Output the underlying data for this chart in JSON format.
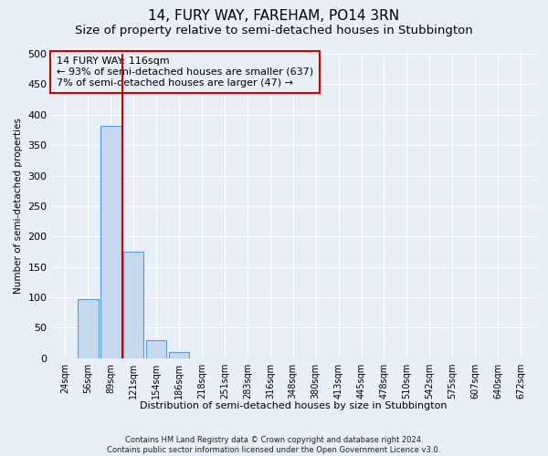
{
  "title": "14, FURY WAY, FAREHAM, PO14 3RN",
  "subtitle": "Size of property relative to semi-detached houses in Stubbington",
  "xlabel": "Distribution of semi-detached houses by size in Stubbington",
  "ylabel": "Number of semi-detached properties",
  "categories": [
    "24sqm",
    "56sqm",
    "89sqm",
    "121sqm",
    "154sqm",
    "186sqm",
    "218sqm",
    "251sqm",
    "283sqm",
    "316sqm",
    "348sqm",
    "380sqm",
    "413sqm",
    "445sqm",
    "478sqm",
    "510sqm",
    "542sqm",
    "575sqm",
    "607sqm",
    "640sqm",
    "672sqm"
  ],
  "values": [
    0,
    97,
    381,
    175,
    30,
    10,
    0,
    0,
    0,
    0,
    0,
    0,
    0,
    0,
    0,
    0,
    0,
    0,
    0,
    0,
    0
  ],
  "bar_color": "#c5d8ee",
  "bar_edge_color": "#5b9bd5",
  "ylim": [
    0,
    500
  ],
  "yticks": [
    0,
    50,
    100,
    150,
    200,
    250,
    300,
    350,
    400,
    450,
    500
  ],
  "red_line_x": 2.5,
  "red_line_color": "#cc0000",
  "annotation_text_line1": "14 FURY WAY: 116sqm",
  "annotation_text_line2": "← 93% of semi-detached houses are smaller (637)",
  "annotation_text_line3": "7% of semi-detached houses are larger (47) →",
  "annotation_box_color": "#cc0000",
  "footer_line1": "Contains HM Land Registry data © Crown copyright and database right 2024.",
  "footer_line2": "Contains public sector information licensed under the Open Government Licence v3.0.",
  "bg_color": "#e8eff6",
  "grid_color": "#ffffff",
  "title_fontsize": 11,
  "subtitle_fontsize": 9.5,
  "annotation_fontsize": 8,
  "footer_fontsize": 6
}
